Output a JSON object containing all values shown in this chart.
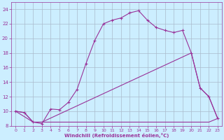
{
  "background_color": "#cceeff",
  "grid_color": "#aabbcc",
  "line_color": "#993399",
  "xlabel": "Windchill (Refroidissement éolien,°C)",
  "xlim": [
    -0.5,
    23.5
  ],
  "ylim": [
    8,
    25
  ],
  "xticks": [
    0,
    1,
    2,
    3,
    4,
    5,
    6,
    7,
    8,
    9,
    10,
    11,
    12,
    13,
    14,
    15,
    16,
    17,
    18,
    19,
    20,
    21,
    22,
    23
  ],
  "yticks": [
    8,
    10,
    12,
    14,
    16,
    18,
    20,
    22,
    24
  ],
  "marker_line_x": [
    0,
    1,
    2,
    3,
    4,
    5,
    6,
    7,
    8,
    9,
    10,
    11,
    12,
    13,
    14,
    15,
    16,
    17,
    18,
    19,
    20,
    21,
    22,
    23
  ],
  "marker_line_y": [
    10.0,
    9.8,
    8.5,
    8.3,
    10.3,
    10.2,
    11.2,
    13.0,
    16.5,
    19.7,
    22.0,
    22.5,
    22.8,
    23.5,
    23.8,
    22.5,
    21.5,
    21.1,
    20.8,
    21.1,
    18.0,
    13.2,
    12.0,
    9.0
  ],
  "diag_line_x": [
    0,
    2,
    3,
    20,
    21,
    22,
    23
  ],
  "diag_line_y": [
    10.0,
    8.5,
    8.5,
    18.0,
    13.2,
    12.0,
    9.0
  ],
  "flat_line_x": [
    0,
    1,
    2,
    3,
    4,
    19,
    20,
    21,
    22,
    23
  ],
  "flat_line_y": [
    10.0,
    9.8,
    8.5,
    8.5,
    8.5,
    8.5,
    8.5,
    8.5,
    8.5,
    9.0
  ]
}
